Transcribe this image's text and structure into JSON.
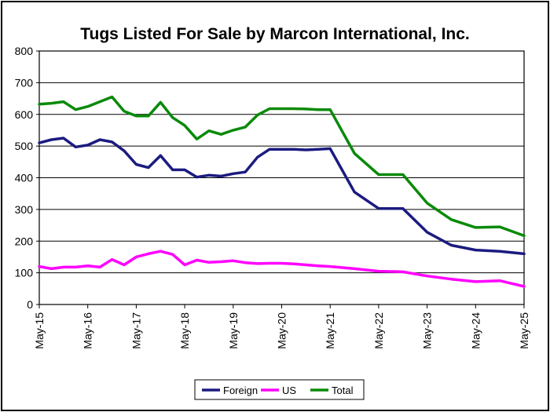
{
  "chart_data": {
    "type": "line",
    "title": "Tugs Listed For Sale by Marcon International, Inc.",
    "xlabel": "",
    "ylabel": "",
    "ylim": [
      0,
      800
    ],
    "yticks": [
      0,
      100,
      200,
      300,
      400,
      500,
      600,
      700,
      800
    ],
    "x_tick_labels": [
      "May-15",
      "May-16",
      "May-17",
      "May-18",
      "May-19",
      "May-20",
      "May-21",
      "May-22",
      "May-23",
      "May-24",
      "May-25"
    ],
    "grid": "horizontal",
    "legend_position": "bottom",
    "x": [
      0,
      0.25,
      0.5,
      0.75,
      1.0,
      1.25,
      1.5,
      1.75,
      2.0,
      2.25,
      2.5,
      2.75,
      3.0,
      3.25,
      3.5,
      3.75,
      4.0,
      4.25,
      4.5,
      4.75,
      5.0,
      5.25,
      5.5,
      5.75,
      6.0,
      6.5,
      7.0,
      7.5,
      8.0,
      8.5,
      9.0,
      9.5,
      10.0
    ],
    "series": [
      {
        "name": "Foreign",
        "color": "#1b1b80",
        "values": [
          510,
          520,
          525,
          497,
          503,
          520,
          513,
          485,
          442,
          432,
          470,
          425,
          425,
          402,
          408,
          405,
          413,
          418,
          465,
          490,
          490,
          490,
          488,
          490,
          492,
          355,
          303,
          303,
          228,
          187,
          172,
          168,
          160
        ]
      },
      {
        "name": "US",
        "color": "#ff00ff",
        "values": [
          120,
          113,
          118,
          118,
          122,
          118,
          142,
          125,
          150,
          160,
          168,
          158,
          125,
          140,
          133,
          135,
          138,
          132,
          129,
          130,
          130,
          128,
          125,
          122,
          120,
          113,
          105,
          103,
          90,
          80,
          72,
          75,
          57
        ]
      },
      {
        "name": "Total",
        "color": "#0a8a0a",
        "values": [
          632,
          635,
          640,
          615,
          625,
          640,
          655,
          610,
          595,
          595,
          638,
          590,
          565,
          522,
          548,
          537,
          550,
          560,
          598,
          618,
          618,
          618,
          617,
          615,
          615,
          477,
          410,
          410,
          320,
          268,
          243,
          245,
          217
        ]
      }
    ]
  }
}
